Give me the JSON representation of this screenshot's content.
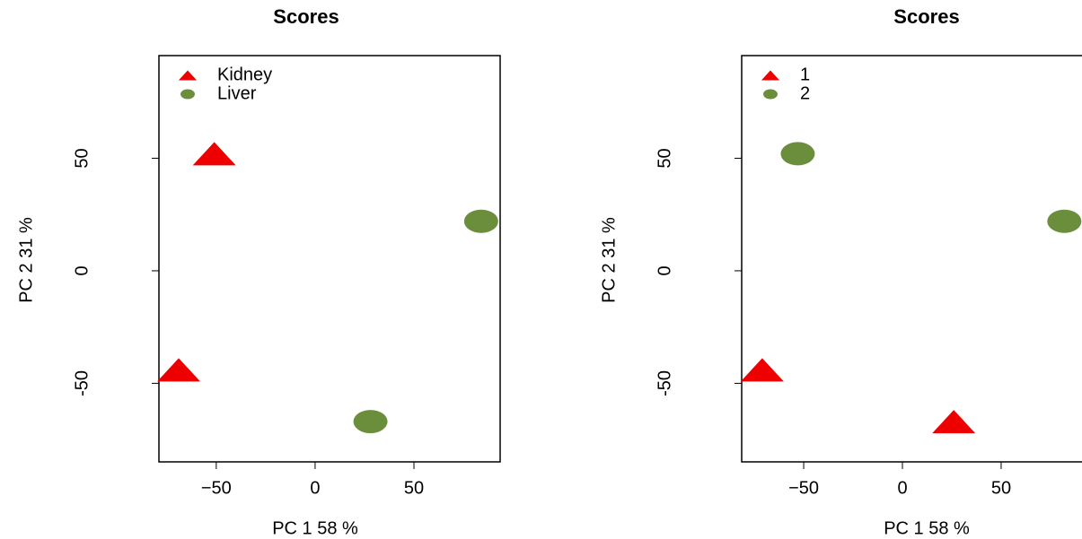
{
  "chart_data": [
    {
      "type": "scatter",
      "title": "Scores",
      "x_label": "PC 1 58 %",
      "y_label": "PC 2 31 %",
      "xlim": [
        -79,
        93.6
      ],
      "ylim": [
        -84.9,
        95.6
      ],
      "xticks": [
        {
          "value": -50,
          "label": "−50"
        },
        0,
        50
      ],
      "yticks": [
        -50,
        0,
        50
      ],
      "legend": "top-left",
      "series": [
        {
          "name": "Kidney",
          "color": "#ee0000",
          "marker": "triangle",
          "x": [
            -51,
            -69
          ],
          "values": [
            52,
            -44
          ]
        },
        {
          "name": "Liver",
          "color": "#6b8e3d",
          "marker": "circle",
          "x": [
            84,
            28
          ],
          "values": [
            22,
            -67
          ]
        }
      ]
    },
    {
      "type": "scatter",
      "title": "Scores",
      "x_label": "PC 1 58 %",
      "y_label": "PC 2 31 %",
      "xlim": [
        -81.4,
        91.4
      ],
      "ylim": [
        -84.9,
        95.6
      ],
      "xticks": [
        {
          "value": -50,
          "label": "−50"
        },
        0,
        50
      ],
      "yticks": [
        -50,
        0,
        50
      ],
      "legend": "top-left",
      "series": [
        {
          "name": "1",
          "color": "#ee0000",
          "marker": "triangle",
          "x": [
            -71,
            26
          ],
          "values": [
            -44,
            -67
          ]
        },
        {
          "name": "2",
          "color": "#6b8e3d",
          "marker": "circle",
          "x": [
            -53,
            82
          ],
          "values": [
            52,
            22
          ]
        }
      ]
    }
  ]
}
